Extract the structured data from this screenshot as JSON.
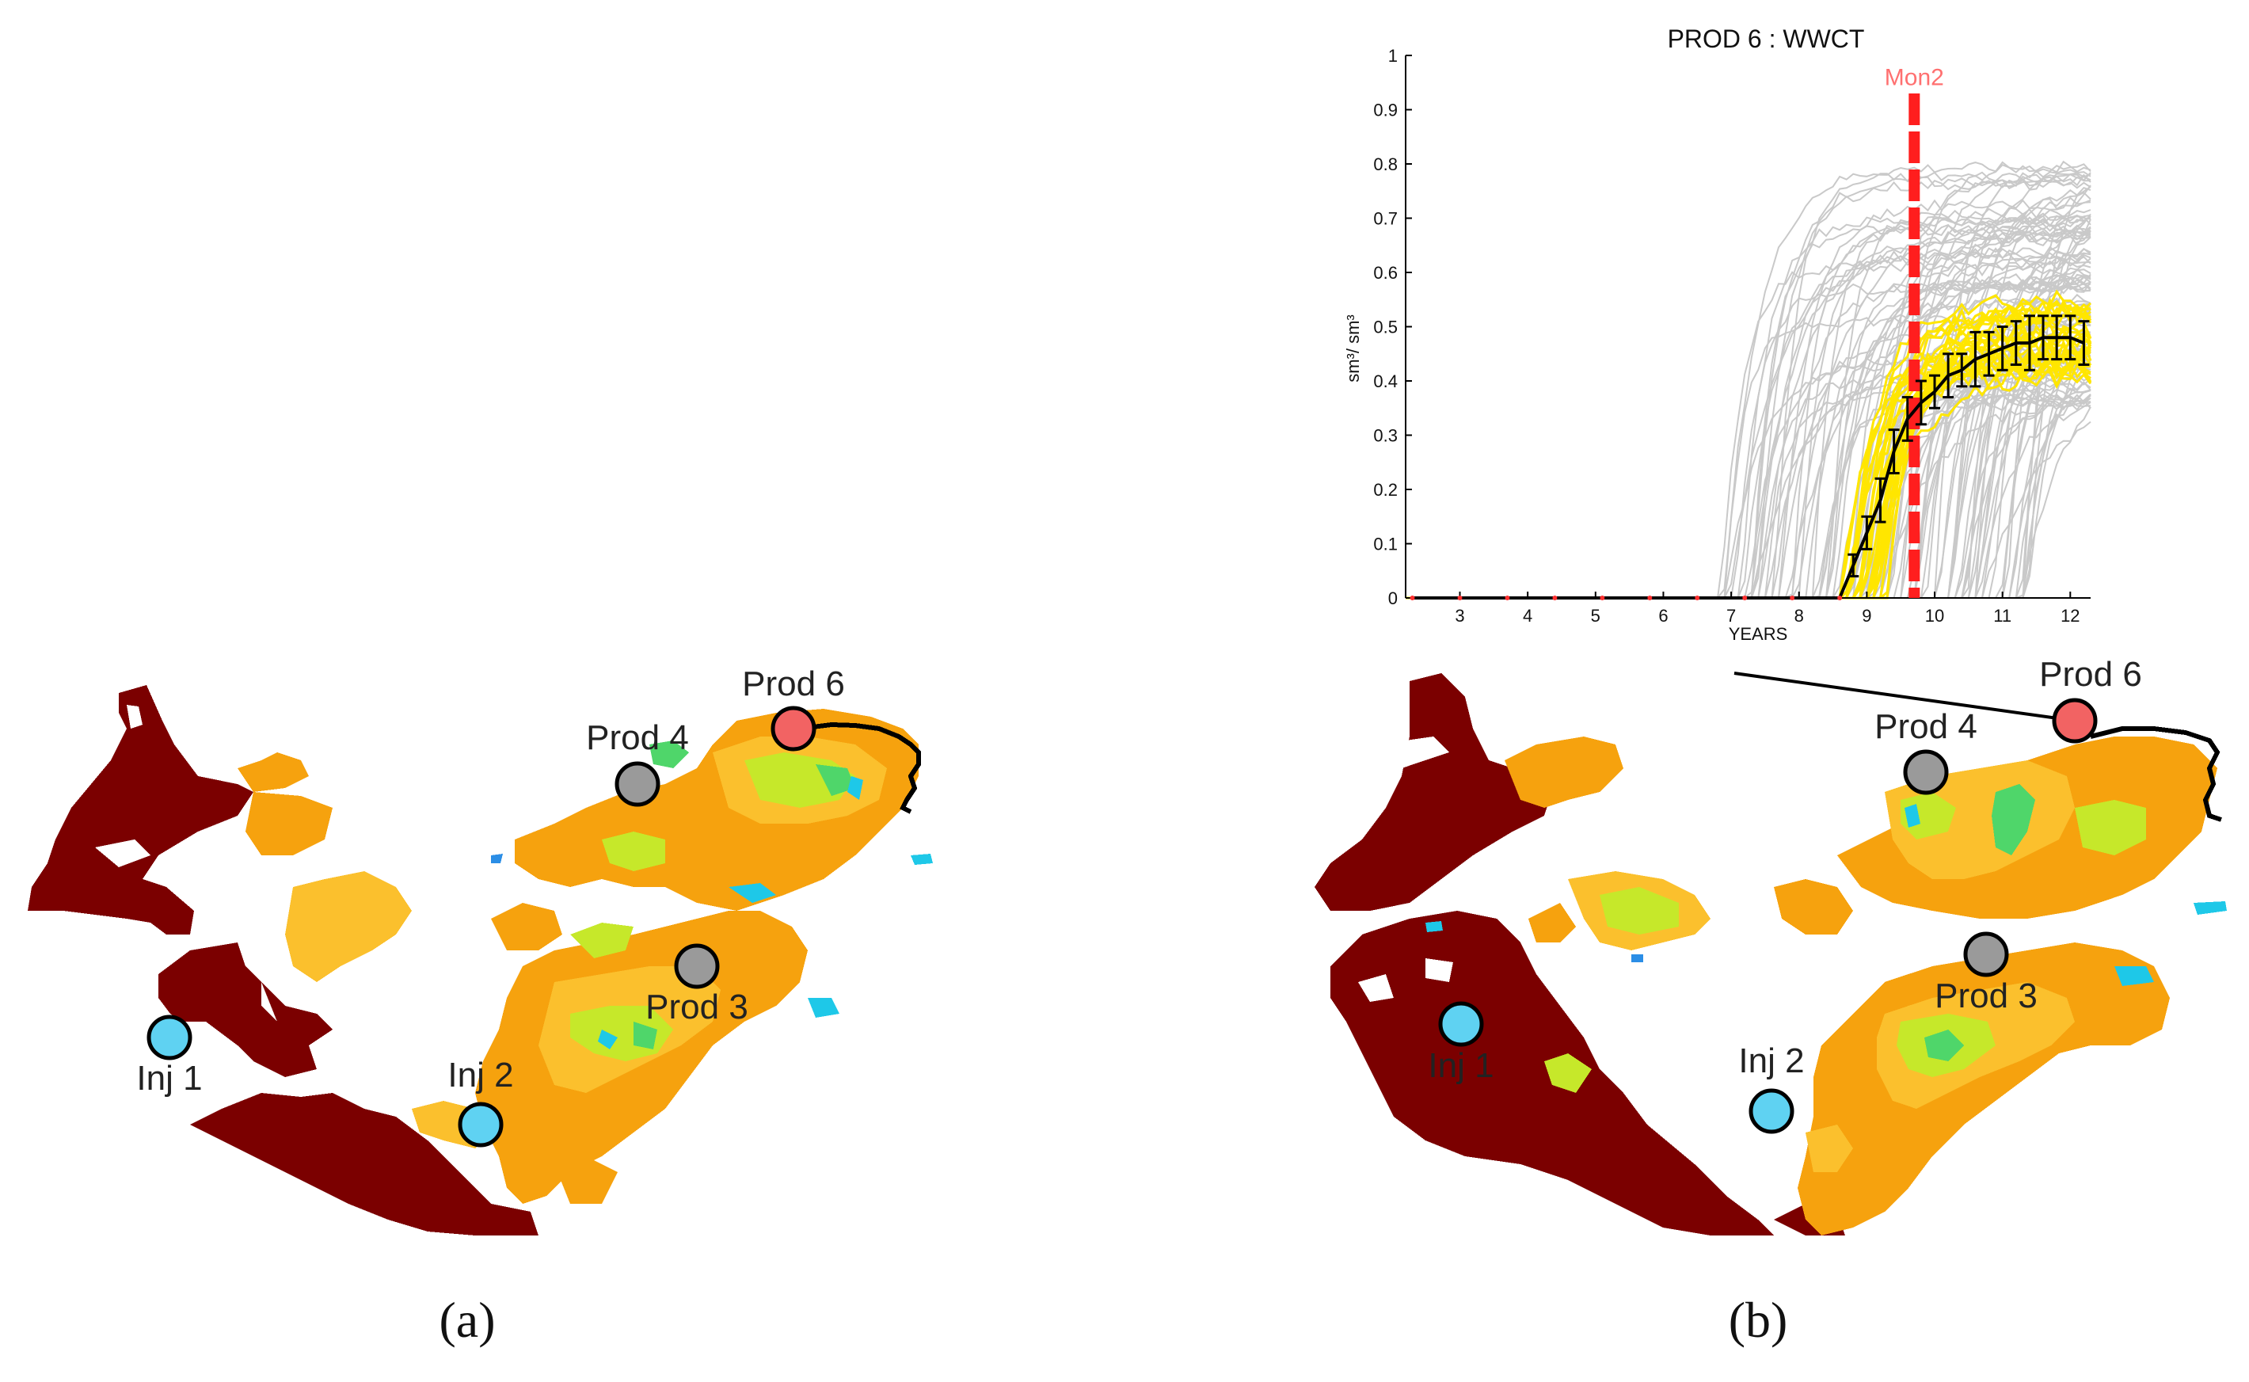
{
  "colors": {
    "dark_red": "#7b0000",
    "orange": "#f6a20e",
    "yellow_orange": "#fbc02d",
    "yellow_green": "#c6e82a",
    "green": "#4fd66a",
    "cyan": "#1ec8e8",
    "blue": "#2b8ee6",
    "injector": "#5fd2f2",
    "producer": "#9a9a9a",
    "producer_highlight": "#f26363",
    "chart_gray": "#c9c9c9",
    "chart_yellow": "#ffe600",
    "monitor_line": "#ff1e1e",
    "monitor_label": "#ff7070"
  },
  "panel_a": {
    "caption": "(a)",
    "wells": {
      "prod6": "Prod 6",
      "prod4": "Prod 4",
      "prod3": "Prod 3",
      "inj1": "Inj 1",
      "inj2": "Inj 2"
    }
  },
  "panel_b": {
    "caption": "(b)",
    "wells": {
      "prod6": "Prod 6",
      "prod4": "Prod 4",
      "prod3": "Prod 3",
      "inj1": "Inj 1",
      "inj2": "Inj 2"
    }
  },
  "chart_data": {
    "type": "line",
    "title": "PROD 6 : WWCT",
    "xlabel": "YEARS",
    "ylabel": "sm³/ sm³",
    "xlim": [
      2.2,
      12.3
    ],
    "ylim": [
      0,
      1
    ],
    "xticks": [
      "3",
      "4",
      "5",
      "6",
      "7",
      "8",
      "9",
      "10",
      "11",
      "12"
    ],
    "yticks": [
      "0",
      "0.1",
      "0.2",
      "0.3",
      "0.4",
      "0.5",
      "0.6",
      "0.7",
      "0.8",
      "0.9",
      "1"
    ],
    "monitor_label": "Mon2",
    "monitor_x": 9.7,
    "grid": false,
    "observed_series": {
      "x": [
        2.3,
        3.0,
        3.7,
        4.4,
        5.1,
        5.8,
        6.5,
        7.2,
        7.9,
        8.6,
        8.8,
        9.0,
        9.2,
        9.4,
        9.6,
        9.8,
        10.0,
        10.2,
        10.4,
        10.6,
        10.8,
        11.0,
        11.2,
        11.4,
        11.6,
        11.8,
        12.0,
        12.2
      ],
      "y": [
        0,
        0,
        0,
        0,
        0,
        0,
        0,
        0,
        0,
        0,
        0.06,
        0.12,
        0.18,
        0.27,
        0.33,
        0.36,
        0.38,
        0.41,
        0.42,
        0.44,
        0.45,
        0.46,
        0.47,
        0.47,
        0.48,
        0.48,
        0.48,
        0.47
      ],
      "err": [
        0,
        0,
        0,
        0,
        0,
        0,
        0,
        0,
        0,
        0,
        0.02,
        0.03,
        0.04,
        0.04,
        0.04,
        0.04,
        0.03,
        0.04,
        0.03,
        0.05,
        0.04,
        0.04,
        0.04,
        0.05,
        0.04,
        0.04,
        0.04,
        0.04
      ]
    }
  }
}
